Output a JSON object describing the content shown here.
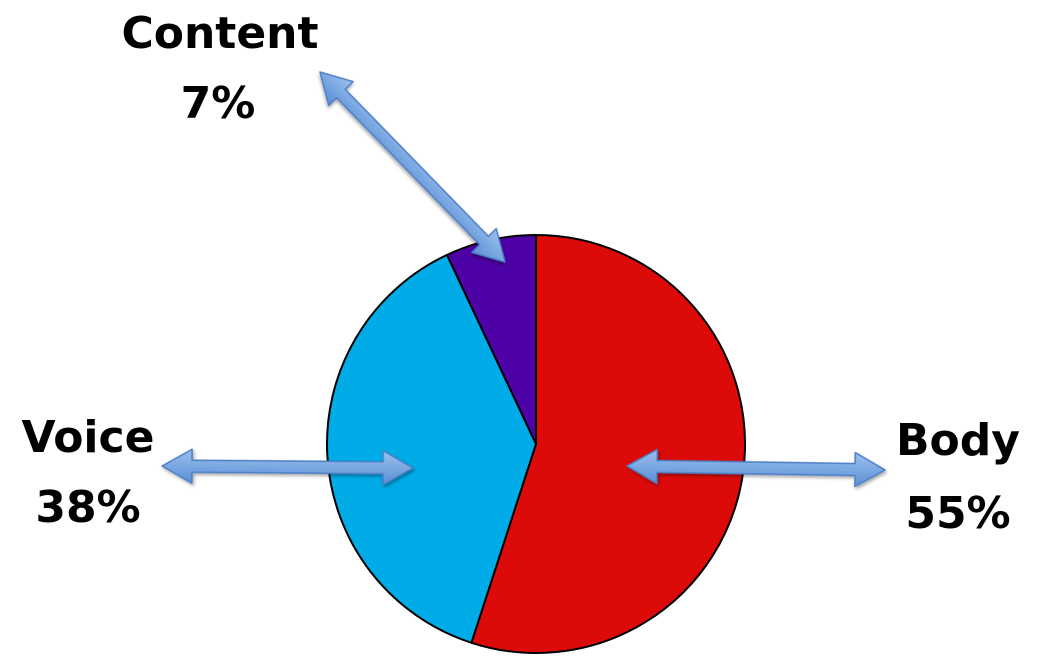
{
  "chart_data": {
    "type": "pie",
    "slices": [
      {
        "label": "Body",
        "value": 55,
        "value_label": "55%",
        "color": "#DD0A0A"
      },
      {
        "label": "Voice",
        "value": 38,
        "value_label": "38%",
        "color": "#00ACE8"
      },
      {
        "label": "Content",
        "value": 7,
        "value_label": "7%",
        "color": "#4D01A6"
      }
    ],
    "slice_outline_color": "#000000",
    "arrow_color": "#6A9BD8"
  }
}
